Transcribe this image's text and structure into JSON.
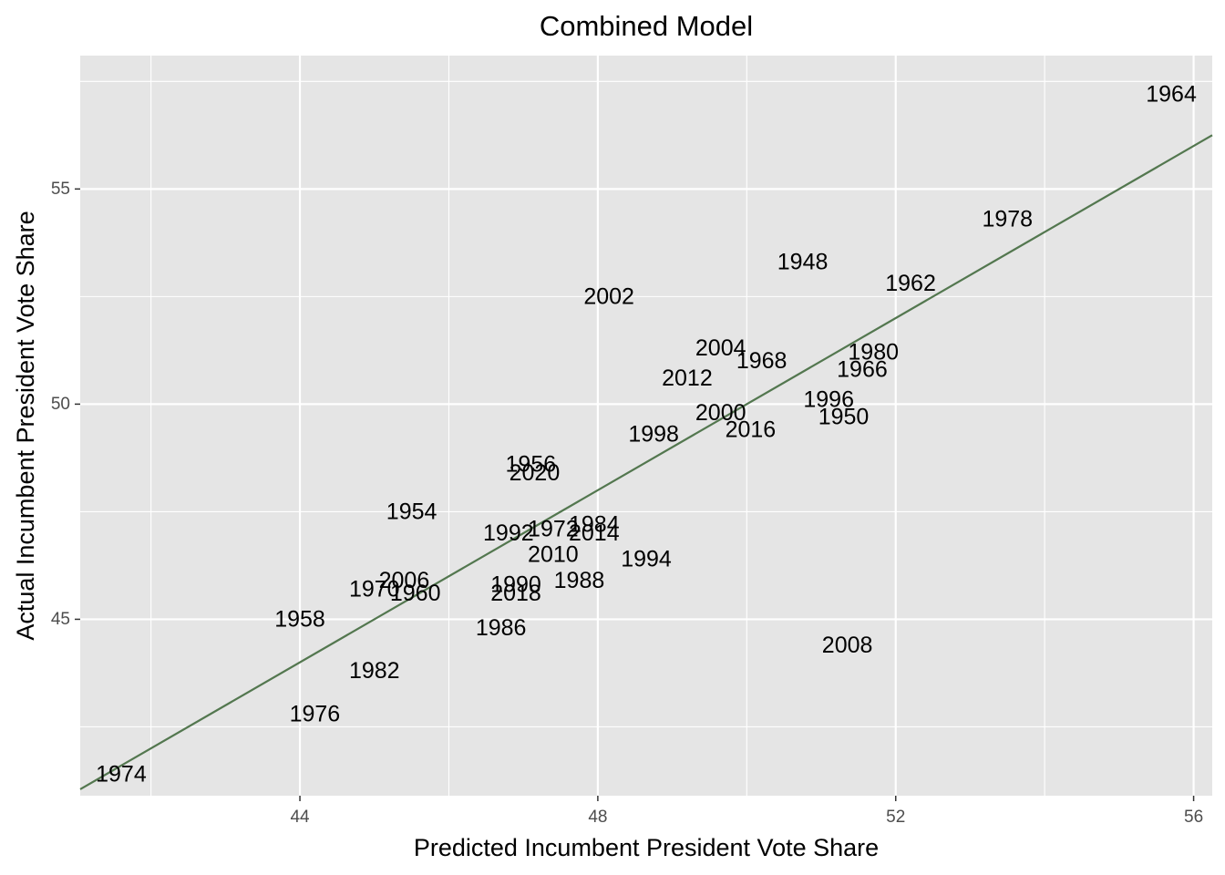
{
  "colors": {
    "panel_background": "#e5e5e5",
    "grid": "#ffffff",
    "fit_line": "#53774f",
    "tick_text": "#4d4d4d",
    "text": "#000000"
  },
  "chart_data": {
    "type": "scatter",
    "title": "Combined Model",
    "xlabel": "Predicted Incumbent President Vote Share",
    "ylabel": "Actual Incumbent President Vote Share",
    "xlim": [
      41.05,
      56.25
    ],
    "ylim": [
      40.9,
      58.1
    ],
    "x_ticks": [
      44,
      48,
      52,
      56
    ],
    "x_tick_labels": [
      "44",
      "48",
      "52",
      "56"
    ],
    "x_minor_ticks": [
      42,
      46,
      50,
      54
    ],
    "y_ticks": [
      45,
      50,
      55
    ],
    "y_tick_labels": [
      "45",
      "50",
      "55"
    ],
    "y_minor_ticks": [
      42.5,
      47.5,
      52.5,
      57.5
    ],
    "grid": true,
    "marker": "text-label",
    "fit_line": {
      "type": "identity",
      "intercept": 0,
      "slope": 1
    },
    "points": [
      {
        "label": "1948",
        "x": 50.75,
        "y": 53.3
      },
      {
        "label": "1950",
        "x": 51.3,
        "y": 49.7
      },
      {
        "label": "1954",
        "x": 45.5,
        "y": 47.5
      },
      {
        "label": "1956",
        "x": 47.1,
        "y": 48.6
      },
      {
        "label": "1958",
        "x": 44.0,
        "y": 45.0
      },
      {
        "label": "1960",
        "x": 45.55,
        "y": 45.6
      },
      {
        "label": "1962",
        "x": 52.2,
        "y": 52.8
      },
      {
        "label": "1964",
        "x": 55.7,
        "y": 57.2
      },
      {
        "label": "1966",
        "x": 51.55,
        "y": 50.8
      },
      {
        "label": "1968",
        "x": 50.2,
        "y": 51.0
      },
      {
        "label": "1970",
        "x": 45.0,
        "y": 45.7
      },
      {
        "label": "1972",
        "x": 47.4,
        "y": 47.1
      },
      {
        "label": "1974",
        "x": 41.6,
        "y": 41.4
      },
      {
        "label": "1976",
        "x": 44.2,
        "y": 42.8
      },
      {
        "label": "1978",
        "x": 53.5,
        "y": 54.3
      },
      {
        "label": "1980",
        "x": 51.7,
        "y": 51.2
      },
      {
        "label": "1982",
        "x": 45.0,
        "y": 43.8
      },
      {
        "label": "1984",
        "x": 47.95,
        "y": 47.2
      },
      {
        "label": "1986",
        "x": 46.7,
        "y": 44.8
      },
      {
        "label": "1988",
        "x": 47.75,
        "y": 45.9
      },
      {
        "label": "1990",
        "x": 46.9,
        "y": 45.8
      },
      {
        "label": "1992",
        "x": 46.8,
        "y": 47.0
      },
      {
        "label": "1994",
        "x": 48.65,
        "y": 46.4
      },
      {
        "label": "1996",
        "x": 51.1,
        "y": 50.1
      },
      {
        "label": "1998",
        "x": 48.75,
        "y": 49.3
      },
      {
        "label": "2000",
        "x": 49.65,
        "y": 49.8
      },
      {
        "label": "2002",
        "x": 48.15,
        "y": 52.5
      },
      {
        "label": "2004",
        "x": 49.65,
        "y": 51.3
      },
      {
        "label": "2006",
        "x": 45.4,
        "y": 45.9
      },
      {
        "label": "2008",
        "x": 51.35,
        "y": 44.4
      },
      {
        "label": "2010",
        "x": 47.4,
        "y": 46.5
      },
      {
        "label": "2012",
        "x": 49.2,
        "y": 50.6
      },
      {
        "label": "2014",
        "x": 47.95,
        "y": 47.0
      },
      {
        "label": "2016",
        "x": 50.05,
        "y": 49.4
      },
      {
        "label": "2018",
        "x": 46.9,
        "y": 45.6
      },
      {
        "label": "2020",
        "x": 47.15,
        "y": 48.4
      }
    ]
  }
}
